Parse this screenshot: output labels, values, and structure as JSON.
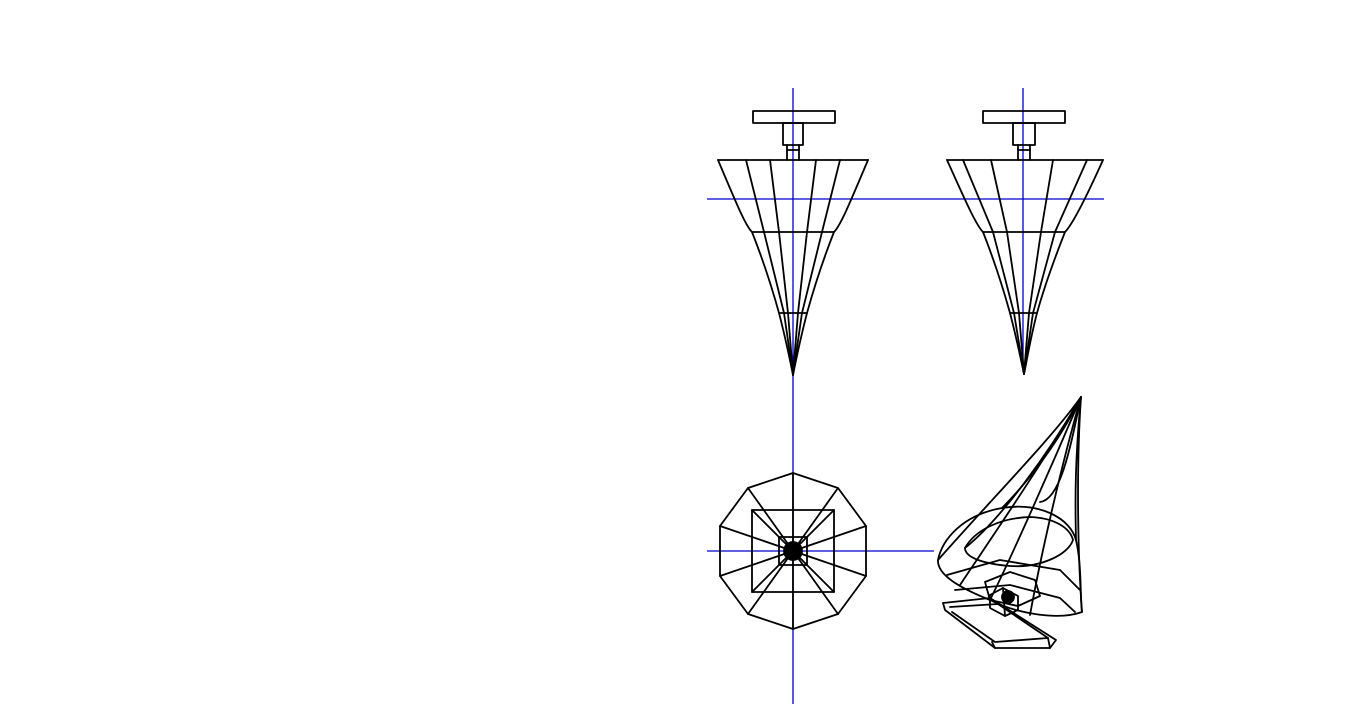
{
  "colors": {
    "background": "#ffffff",
    "wireframe": "#000000",
    "axis": "#0000cc"
  },
  "views": [
    {
      "name": "front-view",
      "projection": "orthographic"
    },
    {
      "name": "side-view",
      "projection": "orthographic"
    },
    {
      "name": "top-view",
      "projection": "orthographic"
    },
    {
      "name": "perspective-view",
      "projection": "perspective"
    }
  ],
  "model": {
    "shape": "inverted cone with cap",
    "radial_segments": 10,
    "rings": 3
  }
}
